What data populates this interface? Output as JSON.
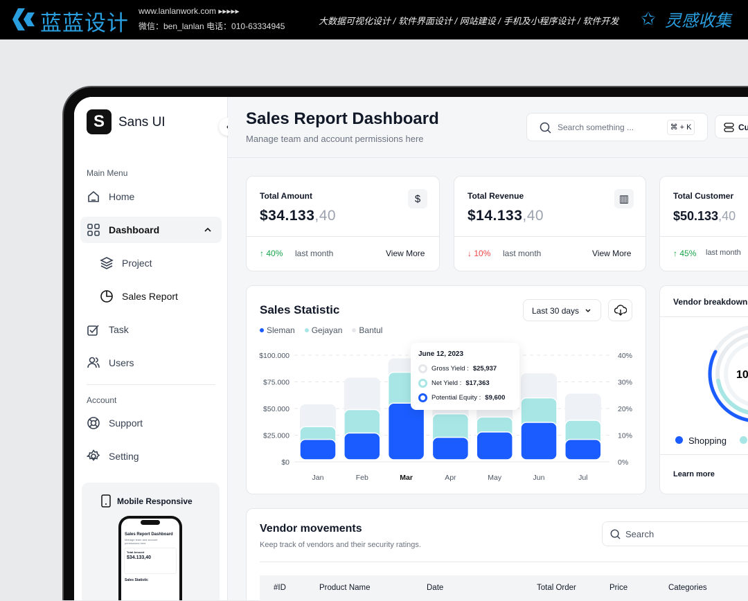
{
  "banner": {
    "brand": "蓝蓝设计",
    "url": "www.lanlanwork.com ▸▸▸▸▸",
    "contact": "微信：ben_lanlan    电话：010-63334945",
    "services": "大数据可视化设计 / 软件界面设计 / 网站建设 / 手机及小程序设计 / 软件开发",
    "collect": "灵感收集"
  },
  "sidebar": {
    "app_name": "Sans UI",
    "main_menu": "Main Menu",
    "items": [
      {
        "label": "Home"
      },
      {
        "label": "Dashboard"
      },
      {
        "label": "Project"
      },
      {
        "label": "Sales Report"
      },
      {
        "label": "Task"
      },
      {
        "label": "Users"
      }
    ],
    "account": "Account",
    "account_items": [
      {
        "label": "Support"
      },
      {
        "label": "Setting"
      }
    ],
    "mobile_card": {
      "title": "Mobile Responsive",
      "phone_title": "Sales Report Dashboard",
      "phone_sub": "Manage team and account permissions here",
      "phone_stat_title": "Total Amount",
      "phone_stat_value": "$34.133,40",
      "phone_chart_title": "Sales Statistic"
    }
  },
  "header": {
    "title": "Sales Report Dashboard",
    "subtitle": "Manage team and account permissions here",
    "search_placeholder": "Search something ...",
    "shortcut": "⌘ + K",
    "customize_label": "Cu"
  },
  "stats": [
    {
      "title": "Total Amount",
      "value_main": "$34.133",
      "value_dec": ",40",
      "icon": "$",
      "change": "40%",
      "direction": "up",
      "period": "last month",
      "link": "View More"
    },
    {
      "title": "Total Revenue",
      "value_main": "$14.133",
      "value_dec": ",40",
      "icon": "▥",
      "change": "10%",
      "direction": "down",
      "period": "last month",
      "link": "View More"
    },
    {
      "title": "Total Customer",
      "value_main": "$50.133",
      "value_dec": ",40",
      "change": "45%",
      "direction": "up",
      "period": "last month"
    }
  ],
  "sales_statistic": {
    "title": "Sales Statistic",
    "range": "Last 30 days"
  },
  "chart_data": {
    "type": "bar",
    "stacked": "overlapping",
    "categories": [
      "Jan",
      "Feb",
      "Mar",
      "Apr",
      "May",
      "Jun",
      "Jul"
    ],
    "highlight": "Mar",
    "series": [
      {
        "name": "Sleman",
        "color": "#1a5cff",
        "values": [
          21000,
          27000,
          55000,
          23000,
          28000,
          37000,
          21000
        ]
      },
      {
        "name": "Gejayan",
        "color": "#a8e6e6",
        "values": [
          33000,
          49000,
          84000,
          45000,
          42000,
          60000,
          39000
        ]
      },
      {
        "name": "Bantul",
        "color": "#eef1f5",
        "values": [
          54000,
          79000,
          97000,
          60000,
          55000,
          83000,
          64000
        ]
      }
    ],
    "y_ticks": [
      "$0",
      "$25.000",
      "$50.000",
      "$75.000",
      "$100.000"
    ],
    "ylim": [
      0,
      100000
    ],
    "y2_ticks": [
      "0%",
      "10%",
      "20%",
      "30%",
      "40%"
    ],
    "y2lim": [
      0,
      40
    ],
    "grid": true,
    "tooltip": {
      "date": "June 12, 2023",
      "rows": [
        {
          "label": "Gross Yield : ",
          "value": "$25,937"
        },
        {
          "label": "Net Yield : ",
          "value": "$17,363"
        },
        {
          "label": "Potential Equity : ",
          "value": "$9,600"
        }
      ]
    }
  },
  "vendor_breakdown": {
    "title": "Vendor breakdown",
    "center": "10",
    "legend": [
      "Shopping"
    ],
    "link": "Learn more"
  },
  "vendor_movements": {
    "title": "Vendor movements",
    "subtitle": "Keep track of vendors and their security ratings.",
    "search_placeholder": "Search",
    "columns": [
      "#ID",
      "Product Name",
      "Date",
      "Total Order",
      "Price",
      "Categories"
    ]
  }
}
